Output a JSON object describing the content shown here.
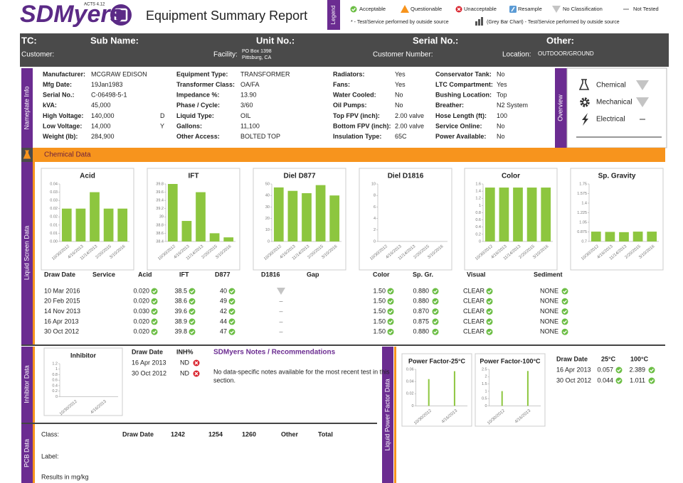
{
  "header": {
    "logo": "SDMyers",
    "logo_badge": "ACTS 4.12",
    "title": "Equipment Summary Report"
  },
  "legend": {
    "title": "Legend",
    "items": [
      "Acceptable",
      "Questionable",
      "Unacceptable",
      "Resample",
      "No Classification",
      "Not Tested"
    ],
    "notes": [
      "* - Test/Service performed by outside source",
      "(Grey Bar Chart) - Test/Service performed by outside source"
    ]
  },
  "info": {
    "row1": [
      "TC:",
      "Sub Name:",
      "Unit No.:",
      "Serial No.:",
      "Other:"
    ],
    "customer": "Customer:",
    "facility_label": "Facility:",
    "facility": [
      "PO Box 1398",
      "Pittsburg, CA"
    ],
    "customer_number": "Customer Number:",
    "location_label": "Location:",
    "location": "OUTDOOR/GROUND"
  },
  "nameplate": {
    "title": "Nameplate Info",
    "columns": [
      [
        [
          "Manufacturer:",
          "MCGRAW EDISON"
        ],
        [
          "Mfg Date:",
          "19Jan1983"
        ],
        [
          "Serial No.:",
          "C-06498-5-1"
        ],
        [
          "kVA:",
          "45,000"
        ],
        [
          "High Voltage:",
          "140,000",
          "D"
        ],
        [
          "Low Voltage:",
          "14,000",
          "Y"
        ],
        [
          "Weight (lb):",
          "284,900"
        ]
      ],
      [
        [
          "Equipment Type:",
          "TRANSFORMER"
        ],
        [
          "Transformer Class:",
          "OA/FA"
        ],
        [
          "Impedance %:",
          "13.90"
        ],
        [
          "Phase / Cycle:",
          "3/60"
        ],
        [
          "Liquid Type:",
          "OIL"
        ],
        [
          "Gallons:",
          "11,100"
        ],
        [
          "Other Access:",
          "BOLTED TOP"
        ]
      ],
      [
        [
          "Radiators:",
          "Yes"
        ],
        [
          "Fans:",
          "Yes"
        ],
        [
          "Water Cooled:",
          "No"
        ],
        [
          "Oil Pumps:",
          "No"
        ],
        [
          "Top FPV (inch):",
          "2.00 valve"
        ],
        [
          "Bottom FPV (inch):",
          "2.00 valve"
        ],
        [
          "Insulation Type:",
          "65C"
        ]
      ],
      [
        [
          "Conservator Tank:",
          "No"
        ],
        [
          "LTC Compartment:",
          "Yes"
        ],
        [
          "Bushing Location:",
          "Top"
        ],
        [
          "Breather:",
          "N2 System"
        ],
        [
          "Hose Length (ft):",
          "100"
        ],
        [
          "Service Online:",
          "No"
        ],
        [
          "Power Available:",
          "No"
        ]
      ]
    ]
  },
  "overview": {
    "title": "Overview",
    "items": [
      "Chemical",
      "Mechanical",
      "Electrical"
    ]
  },
  "chemical": {
    "title": "Chemical Data"
  },
  "liquid_screen": {
    "title": "Liquid Screen Data",
    "charts": [
      {
        "type": "bar",
        "title": "Acid",
        "color": "#8dc63f",
        "x": [
          "10/30/2012",
          "4/16/2013",
          "11/14/2013",
          "2/20/2015",
          "3/10/2016"
        ],
        "values": [
          0.02,
          0.02,
          0.03,
          0.02,
          0.02
        ],
        "ylim": [
          0,
          0.035
        ],
        "yticks": [
          {
            "value": 0,
            "label": "0.00"
          },
          {
            "value": 0.005,
            "label": "0.01"
          },
          {
            "value": 0.01,
            "label": "0.01"
          },
          {
            "value": 0.015,
            "label": "0.02"
          },
          {
            "value": 0.02,
            "label": "0.02"
          },
          {
            "value": 0.025,
            "label": "0.03"
          },
          {
            "value": 0.03,
            "label": "0.03"
          },
          {
            "value": 0.035,
            "label": "0.04"
          }
        ]
      },
      {
        "type": "bar",
        "title": "IFT",
        "color": "#8dc63f",
        "x": [
          "10/30/2012",
          "4/16/2013",
          "11/14/2013",
          "2/20/2015",
          "3/10/2016"
        ],
        "values": [
          39.8,
          38.9,
          39.6,
          38.6,
          38.5
        ],
        "ylim": [
          38.4,
          39.8
        ],
        "yticks": [
          38.4,
          38.6,
          38.8,
          39,
          39.2,
          39.4,
          39.6,
          39.8
        ]
      },
      {
        "type": "bar",
        "title": "Diel D877",
        "color": "#8dc63f",
        "x": [
          "10/30/2012",
          "4/16/2013",
          "11/14/2013",
          "2/20/2015",
          "3/10/2016"
        ],
        "values": [
          47,
          44,
          42,
          49,
          40
        ],
        "ylim": [
          0,
          50
        ],
        "yticks": [
          0,
          10,
          20,
          30,
          40,
          50
        ]
      },
      {
        "type": "bar",
        "title": "Diel D1816",
        "color": "#8dc63f",
        "x": [
          "10/30/2012",
          "4/16/2013",
          "11/14/2013",
          "2/20/2015",
          "3/10/2016"
        ],
        "values": [
          null,
          null,
          null,
          null,
          null
        ],
        "ylim": [
          0,
          10
        ],
        "yticks": [
          0,
          2,
          4,
          6,
          8,
          10
        ]
      },
      {
        "type": "bar",
        "title": "Color",
        "color": "#8dc63f",
        "x": [
          "10/30/2012",
          "4/16/2013",
          "11/14/2013",
          "2/20/2015",
          "3/10/2016"
        ],
        "values": [
          1.5,
          1.5,
          1.5,
          1.5,
          1.5
        ],
        "ylim": [
          0,
          1.6
        ],
        "yticks": [
          0,
          0.2,
          0.4,
          0.6,
          0.8,
          1,
          1.2,
          1.4,
          1.6
        ]
      },
      {
        "type": "bar",
        "title": "Sp. Gravity",
        "color": "#8dc63f",
        "x": [
          "10/30/2012",
          "4/16/2013",
          "11/14/2013",
          "2/20/2015",
          "3/10/2016"
        ],
        "values": [
          0.88,
          0.875,
          0.87,
          0.88,
          0.88
        ],
        "ylim": [
          0.7,
          1.75
        ],
        "yticks": [
          0.7,
          0.875,
          1.05,
          1.225,
          1.4,
          1.575,
          1.75
        ]
      }
    ],
    "table": {
      "headers": [
        "Draw Date",
        "Service",
        "Acid",
        "IFT",
        "D877",
        "D1816",
        "Gap",
        "Color",
        "Sp. Gr.",
        "Visual",
        "Sediment"
      ],
      "rows": [
        {
          "date": "10 Mar 2016",
          "acid": "0.020",
          "ift": "38.5",
          "d877": "40",
          "color": "1.50",
          "sp_gr": "0.880",
          "visual": "CLEAR",
          "sediment": "NONE"
        },
        {
          "date": "20 Feb 2015",
          "acid": "0.020",
          "ift": "38.6",
          "d877": "49",
          "d1816": "–",
          "color": "1.50",
          "sp_gr": "0.880",
          "visual": "CLEAR",
          "sediment": "NONE"
        },
        {
          "date": "14 Nov 2013",
          "acid": "0.030",
          "ift": "39.6",
          "d877": "42",
          "d1816": "–",
          "color": "1.50",
          "sp_gr": "0.870",
          "visual": "CLEAR",
          "sediment": "NONE"
        },
        {
          "date": "16 Apr 2013",
          "acid": "0.020",
          "ift": "38.9",
          "d877": "44",
          "d1816": "–",
          "color": "1.50",
          "sp_gr": "0.875",
          "visual": "CLEAR",
          "sediment": "NONE"
        },
        {
          "date": "30 Oct 2012",
          "acid": "0.020",
          "ift": "39.8",
          "d877": "47",
          "d1816": "–",
          "color": "1.50",
          "sp_gr": "0.880",
          "visual": "CLEAR",
          "sediment": "NONE"
        }
      ]
    }
  },
  "inhibitor": {
    "title": "Inhibitor Data",
    "chart": {
      "type": "bar",
      "title": "Inhibitor",
      "color": "#8dc63f",
      "x": [
        "10/30/2012",
        "4/16/2013"
      ],
      "values": [
        null,
        null
      ],
      "ylim": [
        0,
        1.2
      ],
      "yticks": [
        0,
        0.2,
        0.4,
        0.6,
        0.8,
        1,
        1.2
      ]
    },
    "table": {
      "headers": [
        "Draw Date",
        "INH%"
      ],
      "rows": [
        [
          "16 Apr 2013",
          "ND"
        ],
        [
          "30 Oct 2012",
          "ND"
        ]
      ]
    },
    "notes": {
      "title": "SDMyers Notes / Recommendations",
      "text": [
        "No data-specific notes available for the most recent test in this",
        "section."
      ]
    }
  },
  "power_factor": {
    "title": "Liquid Power Factor Data",
    "charts": [
      {
        "type": "bar",
        "title": "Power Factor-25°C",
        "color": "#8dc63f",
        "x": [
          "10/30/2012",
          "4/16/2013"
        ],
        "values": [
          0.044,
          0.057
        ],
        "ylim": [
          0,
          0.06
        ],
        "yticks": [
          0,
          0.02,
          0.04,
          0.06
        ]
      },
      {
        "type": "bar",
        "title": "Power Factor-100°C",
        "color": "#8dc63f",
        "x": [
          "10/30/2012",
          "4/16/2013"
        ],
        "values": [
          1.011,
          2.389
        ],
        "ylim": [
          0,
          2.5
        ],
        "yticks": [
          0,
          0.5,
          1,
          1.5,
          2,
          2.5
        ]
      }
    ],
    "table": {
      "headers": [
        "Draw Date",
        "25°C",
        "100°C"
      ],
      "rows": [
        [
          "16 Apr 2013",
          "0.057",
          "2.389"
        ],
        [
          "30 Oct 2012",
          "0.044",
          "1.011"
        ]
      ]
    }
  },
  "pcb": {
    "title": "PCB Data",
    "class_label": "Class:",
    "headers": [
      "Draw Date",
      "1242",
      "1254",
      "1260",
      "Other",
      "Total"
    ],
    "label_label": "Label:",
    "units": "Results in mg/kg"
  }
}
